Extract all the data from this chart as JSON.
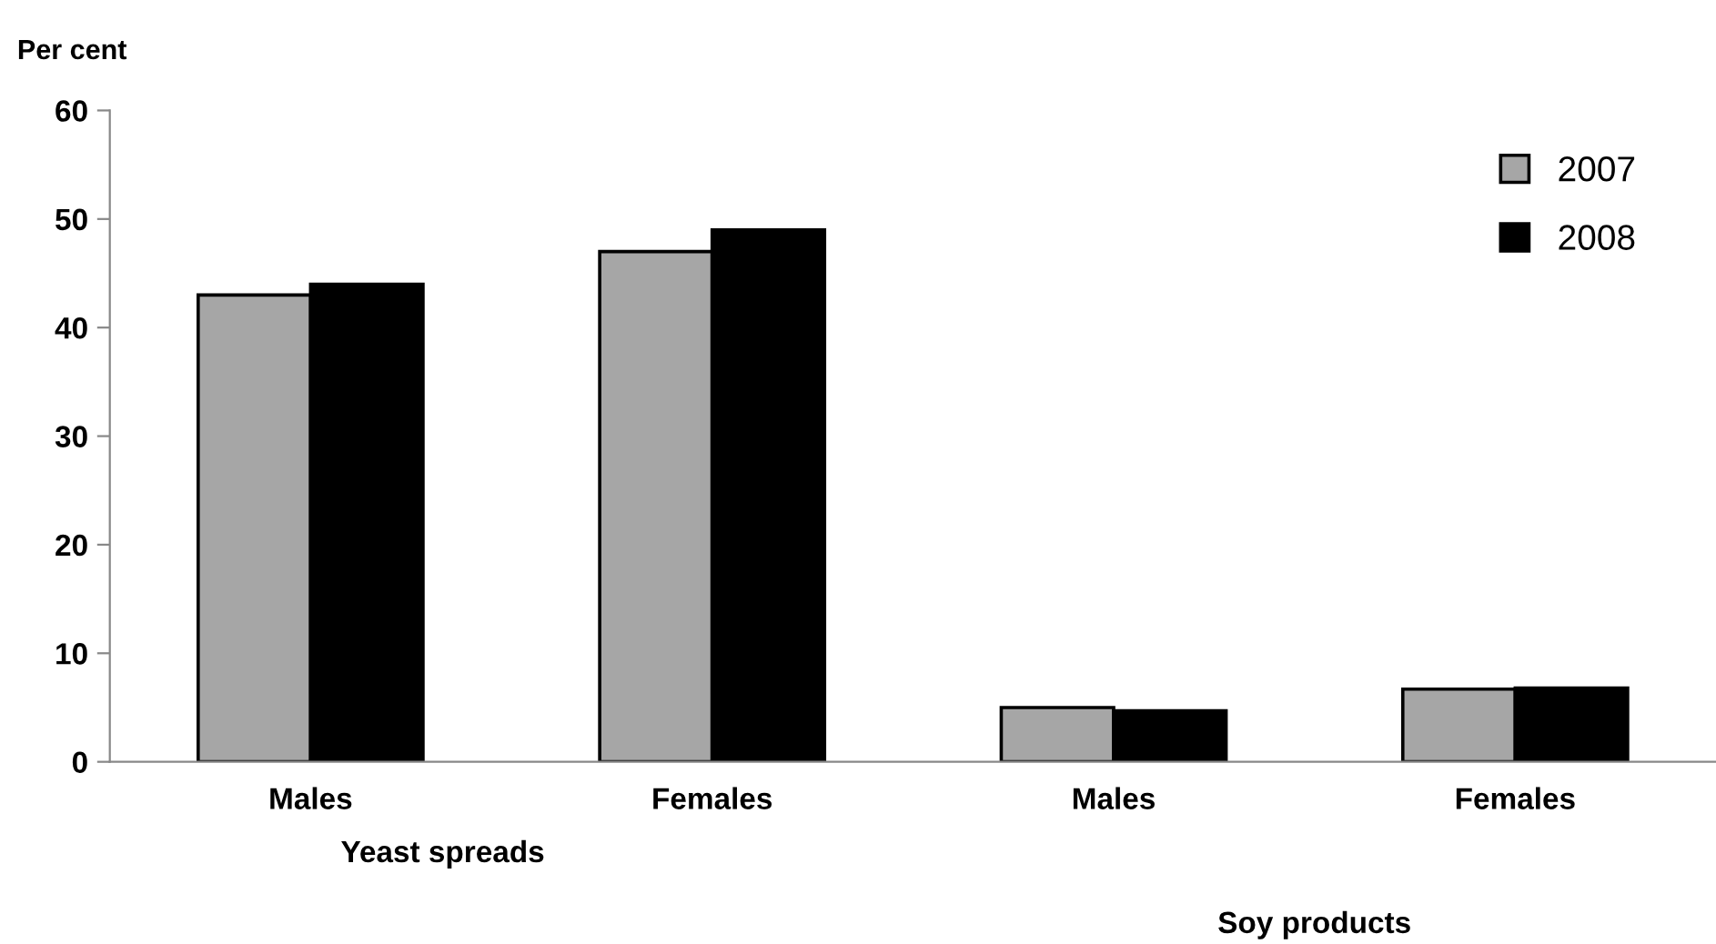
{
  "chart_data": {
    "type": "bar",
    "ylabel": "Per cent",
    "categories": [
      "Males",
      "Females",
      "Males",
      "Females"
    ],
    "series": [
      {
        "name": "2007",
        "color": "#a6a6a6",
        "values": [
          43,
          47,
          5.0,
          6.7
        ]
      },
      {
        "name": "2008",
        "color": "#000000",
        "values": [
          44,
          49,
          4.7,
          6.8
        ]
      }
    ],
    "ylim": [
      0,
      60
    ],
    "yticks": [
      0,
      10,
      20,
      30,
      40,
      50,
      60
    ],
    "grid": false,
    "legend": "top right",
    "annotations": [
      "Yeast spreads",
      "Soy products"
    ]
  }
}
